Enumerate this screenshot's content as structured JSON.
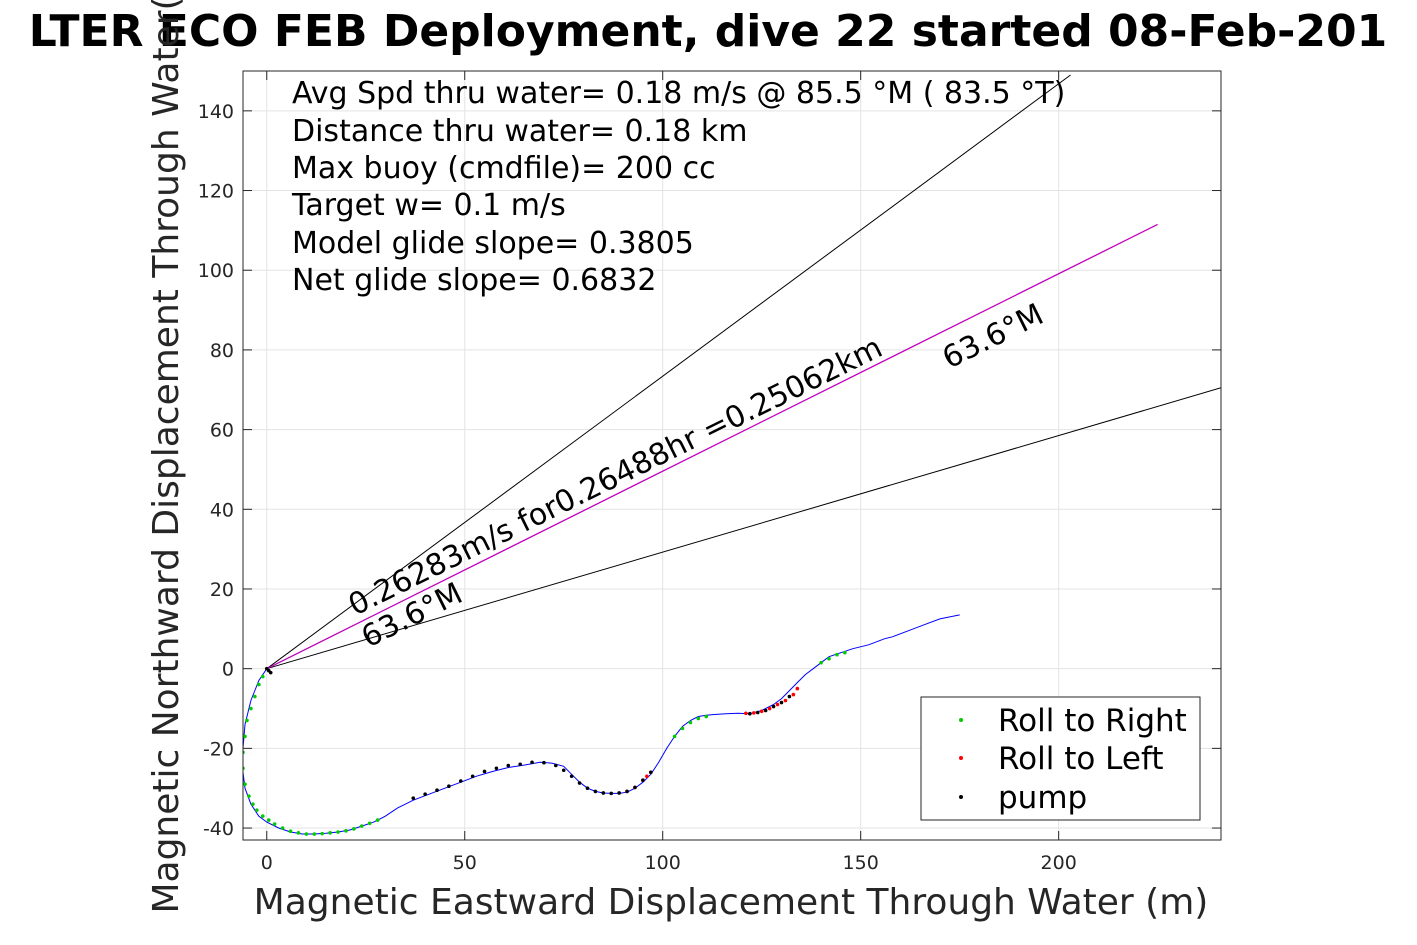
{
  "chart_data": {
    "type": "scatter",
    "title": "LTER ECO FEB Deployment, dive 22 started 08-Feb-201",
    "xlabel": "Magnetic Eastward Displacement Through Water (m)",
    "ylabel": "Magnetic Northward Displacement Through Water(",
    "xlim": [
      -6,
      241
    ],
    "ylim": [
      -43,
      150
    ],
    "xticks": [
      0,
      50,
      100,
      150,
      200
    ],
    "yticks": [
      -40,
      -20,
      0,
      20,
      40,
      60,
      80,
      100,
      120,
      140
    ],
    "grid": true,
    "info_lines": [
      "Avg Spd thru water=  0.18 m/s @  85.5 °M ( 83.5 °T)",
      "Distance thru water=  0.18 km",
      "Max buoy (cmdfile)= 200 cc",
      "Target w= 0.1 m/s",
      "Model glide slope= 0.3805",
      "Net glide slope= 0.6832"
    ],
    "annotations": {
      "current_text": "0.26283m/s for0.26488hr =0.25062km",
      "heading_lower": "63.6°M",
      "heading_upper": "63.6°M"
    },
    "lines": {
      "cone_upper": {
        "x": [
          0,
          203
        ],
        "y": [
          0,
          149
        ],
        "color": "#000000"
      },
      "cone_lower": {
        "x": [
          0,
          241
        ],
        "y": [
          0,
          70.5
        ],
        "color": "#000000"
      },
      "current_vector": {
        "x": [
          0,
          225
        ],
        "y": [
          0,
          111.5
        ],
        "color": "#c000c0"
      }
    },
    "track": {
      "color": "#0000ff",
      "x": [
        0,
        -2,
        -4,
        -5.5,
        -6,
        -6,
        -5.5,
        -4,
        -2,
        0,
        3,
        6,
        9,
        12,
        15,
        18,
        21,
        24,
        27,
        30,
        33,
        37,
        41,
        45,
        49,
        53,
        57,
        61,
        65,
        69,
        72,
        75,
        77,
        79,
        81,
        83,
        85,
        87,
        89,
        91,
        93,
        95,
        97,
        99,
        101,
        103,
        105,
        107,
        109,
        111,
        113,
        116,
        119,
        122,
        125,
        128,
        130,
        132,
        134,
        136,
        138,
        140,
        142,
        145,
        148,
        152,
        156,
        158,
        162,
        166,
        170,
        175
      ],
      "y": [
        0,
        -3,
        -8,
        -14,
        -20,
        -26,
        -30,
        -34,
        -37,
        -38.5,
        -40,
        -41,
        -41.5,
        -41.5,
        -41.3,
        -41,
        -40.5,
        -39.5,
        -38.5,
        -37,
        -35,
        -33,
        -31.5,
        -30,
        -28.5,
        -27,
        -25.8,
        -24.8,
        -24.2,
        -23.5,
        -23.7,
        -24.5,
        -26.5,
        -28.5,
        -30,
        -30.8,
        -31.2,
        -31.3,
        -31.3,
        -31,
        -30,
        -28.5,
        -26.5,
        -23.5,
        -20,
        -17,
        -14.5,
        -13,
        -12,
        -11.7,
        -11.5,
        -11.3,
        -11.2,
        -11.3,
        -10.5,
        -9,
        -7.5,
        -5.5,
        -3.5,
        -1.5,
        0,
        1.5,
        3,
        4,
        5,
        6,
        7.5,
        8,
        9.5,
        11,
        12.5,
        13.5
      ]
    },
    "series": [
      {
        "name": "Roll to Right",
        "color": "#00cc00",
        "x": [
          -1,
          -2,
          -3,
          -4,
          -5,
          -5.5,
          -6,
          -6,
          -5.5,
          -4.5,
          -3.5,
          -2.5,
          -1,
          0.5,
          2,
          4,
          6,
          8,
          10,
          12,
          14,
          16,
          18,
          20,
          22,
          24,
          26,
          28,
          103,
          105,
          107,
          109,
          111,
          140,
          142,
          144,
          146
        ],
        "y": [
          -2,
          -4,
          -7,
          -10,
          -13,
          -17,
          -21,
          -25,
          -29,
          -32,
          -34,
          -35.5,
          -37,
          -38,
          -39,
          -40,
          -40.8,
          -41.2,
          -41.5,
          -41.5,
          -41.4,
          -41.2,
          -41,
          -40.7,
          -40.2,
          -39.5,
          -38.8,
          -38,
          -17,
          -15,
          -13.5,
          -12.5,
          -12,
          1.5,
          2.5,
          3.5,
          4
        ]
      },
      {
        "name": "Roll to Left",
        "color": "#ff0000",
        "x": [
          91,
          93,
          95,
          96,
          97,
          121,
          123,
          125,
          127,
          129,
          131,
          133,
          134
        ],
        "y": [
          -30.8,
          -29.8,
          -28,
          -27,
          -26,
          -11.2,
          -11.1,
          -10.7,
          -10,
          -9,
          -8,
          -6.5,
          -5
        ]
      },
      {
        "name": "pump",
        "color": "#000000",
        "x": [
          0,
          0.5,
          1,
          37,
          40,
          43,
          46,
          49,
          52,
          55,
          58,
          61,
          64,
          67,
          70,
          73,
          75,
          77,
          79,
          81,
          83,
          85,
          87,
          89,
          91,
          93,
          95,
          97,
          122,
          124,
          126,
          128,
          130,
          132
        ],
        "y": [
          0,
          -0.5,
          -1,
          -32.5,
          -31.5,
          -30.5,
          -29.5,
          -28.2,
          -27,
          -25.8,
          -25,
          -24.3,
          -24,
          -23.5,
          -23.6,
          -24.3,
          -25.5,
          -27,
          -28.7,
          -30,
          -30.8,
          -31.2,
          -31.3,
          -31.2,
          -30.8,
          -29.8,
          -28,
          -26,
          -11.3,
          -11,
          -10.5,
          -9.5,
          -8.5,
          -7
        ]
      }
    ],
    "legend": {
      "position": "bottom-right",
      "entries": [
        "Roll to Right",
        "Roll to Left",
        "pump"
      ]
    }
  }
}
